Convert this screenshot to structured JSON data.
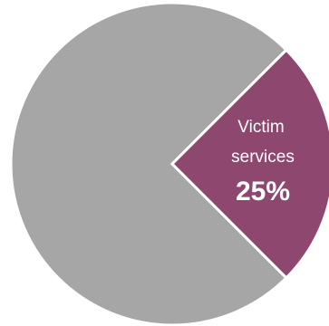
{
  "chart_data": {
    "type": "pie",
    "categories": [
      "Victim services",
      ""
    ],
    "values": [
      25,
      75
    ],
    "colors": [
      "#8e476f",
      "#a6a6a6"
    ],
    "slice_border_color": "#ffffff",
    "labels": [
      {
        "line1": "Victim",
        "line2": "services",
        "value_text": "25%"
      }
    ],
    "title": "",
    "legend": "none"
  }
}
